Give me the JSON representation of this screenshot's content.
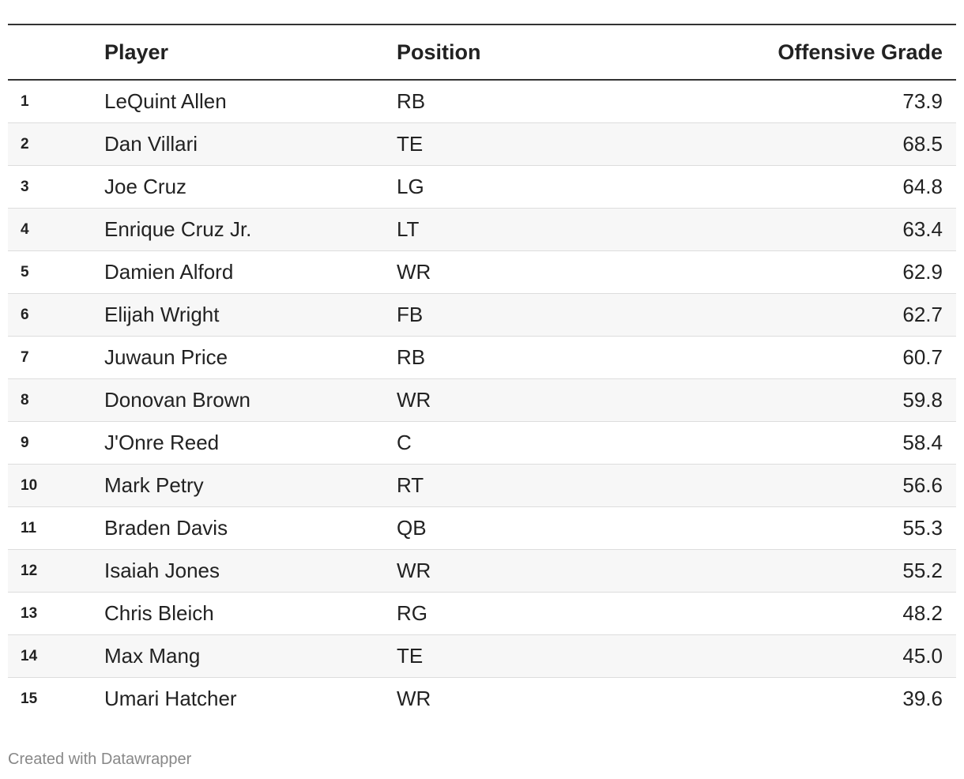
{
  "table": {
    "header": [
      "",
      "Player",
      "Position",
      "Offensive Grade"
    ],
    "rows": [
      [
        "1",
        "LeQuint Allen",
        "RB",
        "73.9"
      ],
      [
        "2",
        "Dan Villari",
        "TE",
        "68.5"
      ],
      [
        "3",
        "Joe Cruz",
        "LG",
        "64.8"
      ],
      [
        "4",
        "Enrique Cruz Jr.",
        "LT",
        "63.4"
      ],
      [
        "5",
        "Damien Alford",
        "WR",
        "62.9"
      ],
      [
        "6",
        "Elijah Wright",
        "FB",
        "62.7"
      ],
      [
        "7",
        "Juwaun Price",
        "RB",
        "60.7"
      ],
      [
        "8",
        "Donovan Brown",
        "WR",
        "59.8"
      ],
      [
        "9",
        "J'Onre Reed",
        "C",
        "58.4"
      ],
      [
        "10",
        "Mark Petry",
        "RT",
        "56.6"
      ],
      [
        "11",
        "Braden Davis",
        "QB",
        "55.3"
      ],
      [
        "12",
        "Isaiah Jones",
        "WR",
        "55.2"
      ],
      [
        "13",
        "Chris Bleich",
        "RG",
        "48.2"
      ],
      [
        "14",
        "Max Mang",
        "TE",
        "45.0"
      ],
      [
        "15",
        "Umari Hatcher",
        "WR",
        "39.6"
      ]
    ]
  },
  "footer": "Created with Datawrapper"
}
